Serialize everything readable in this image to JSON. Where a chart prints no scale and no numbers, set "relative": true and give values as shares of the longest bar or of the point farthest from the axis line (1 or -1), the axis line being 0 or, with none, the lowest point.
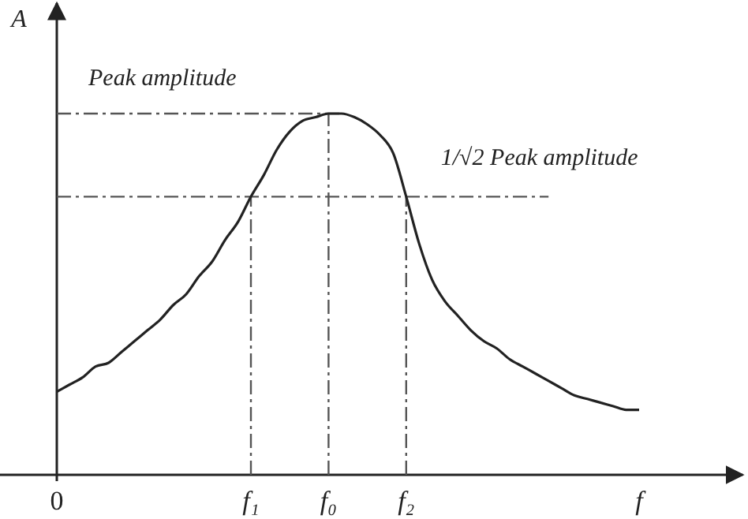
{
  "chart_data": {
    "type": "line",
    "relative": true,
    "xlabel": "f",
    "ylabel": "A",
    "categories": [
      "0",
      null,
      null,
      null,
      null,
      null,
      null,
      null,
      null,
      null,
      null,
      null,
      null,
      null,
      null,
      "f₁",
      null,
      null,
      null,
      null,
      null,
      "f₀",
      null,
      null,
      null,
      null,
      null,
      "f₂",
      null,
      null,
      null,
      null,
      null,
      null,
      null,
      null,
      null,
      null,
      null,
      null,
      null,
      null,
      null,
      null,
      null,
      null,
      null,
      null,
      null,
      null,
      null,
      null,
      null,
      null
    ],
    "series": [
      {
        "color": "#222222",
        "values": [
          0.23,
          0.25,
          0.27,
          0.3,
          0.31,
          0.34,
          0.37,
          0.4,
          0.43,
          0.47,
          0.5,
          0.55,
          0.59,
          0.65,
          0.7,
          0.77,
          0.83,
          0.9,
          0.95,
          0.98,
          0.99,
          1.0,
          1.0,
          0.99,
          0.97,
          0.94,
          0.89,
          0.77,
          0.64,
          0.54,
          0.48,
          0.44,
          0.4,
          0.37,
          0.35,
          0.32,
          0.3,
          0.28,
          0.26,
          0.24,
          0.22,
          0.21,
          0.2,
          0.19,
          0.18,
          0.18,
          null,
          null,
          null,
          null,
          null,
          null,
          null,
          null
        ]
      }
    ],
    "line_style": "solid",
    "ref_lines": [
      {
        "axis": "y",
        "value": 1.0,
        "label": "Peak amplitude",
        "color": "#555555",
        "line_style": "dashdot"
      },
      {
        "axis": "y",
        "value": 0.77,
        "label": "1/√2 Peak amplitude",
        "color": "#555555",
        "line_style": "dashdot"
      },
      {
        "axis": "x",
        "value": "f₁",
        "color": "#555555",
        "line_style": "dashdot"
      },
      {
        "axis": "x",
        "value": "f₀",
        "color": "#555555",
        "line_style": "dashdot"
      },
      {
        "axis": "x",
        "value": "f₂",
        "color": "#555555",
        "line_style": "dashdot"
      }
    ]
  }
}
